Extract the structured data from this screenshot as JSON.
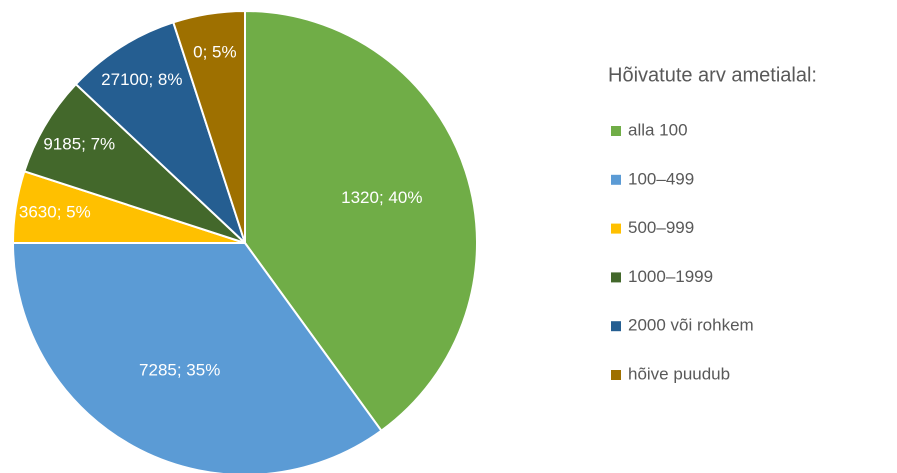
{
  "chart_data": {
    "type": "pie",
    "legend_title": "Hõivatute arv ametialal:",
    "categories": [
      "alla 100",
      "100–499",
      "500–999",
      "1000–1999",
      "2000 või rohkem",
      "hõive puudub"
    ],
    "values": [
      40,
      35,
      5,
      7,
      8,
      5
    ],
    "value_labels": [
      "1320; 40%",
      "7285; 35%",
      "3630; 5%",
      "9185; 7%",
      "27100; 8%",
      "0; 5%"
    ],
    "colors": [
      "#70ad47",
      "#5b9bd5",
      "#ffc000",
      "#43682b",
      "#255e91",
      "#9e7000"
    ],
    "legend": "right"
  }
}
